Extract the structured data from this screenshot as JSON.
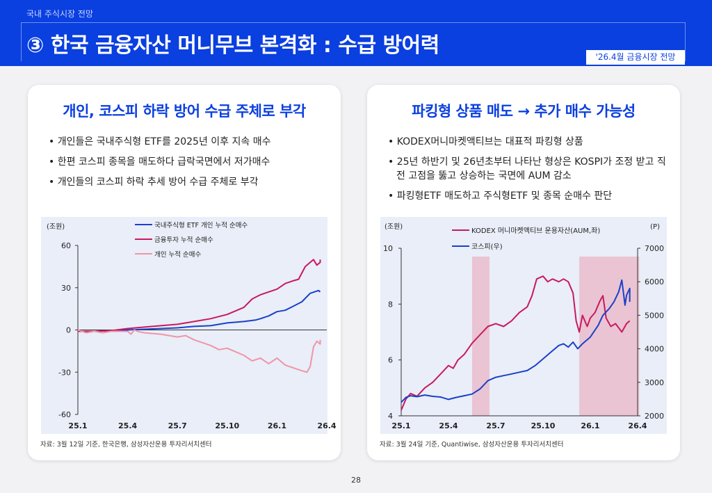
{
  "header": {
    "subtitle": "국내 주식시장 전망",
    "title": "③ 한국 금융자산 머니무브 본격화 : 수급 방어력",
    "badge": "'26.4월 금융시장 전망"
  },
  "left_panel": {
    "title": "개인, 코스피 하락 방어 수급 주체로 부각",
    "bullets": [
      "개인들은 국내주식형 ETF를 2025년 이후 지속 매수",
      "한편 코스피 종목을 매도하다 급락국면에서 저가매수",
      "개인들의 코스피 하락 추세 방어 수급 주체로 부각"
    ],
    "source": "자료: 3월 12일 기준, 한국은행, 삼성자산운용 투자리서치센터"
  },
  "right_panel": {
    "title": "파킹형 상품 매도 → 추가 매수 가능성",
    "bullets": [
      "KODEX머니마켓액티브는 대표적 파킹형 상품",
      "25년 하반기 및 26년초부터 나타난 형상은 KOSPI가 조정 받고 직전 고점을 뚫고 상승하는 국면에 AUM 감소",
      "파킹형ETF 매도하고 주식형ETF 및 종목 순매수 판단"
    ],
    "source": "자료: 3월 24일 기준, Quantiwise, 삼성자산운용 투자리서치센터"
  },
  "page_number": "28",
  "chart_data": [
    {
      "type": "line",
      "ylabel": "(조원)",
      "ylim": [
        -60,
        60
      ],
      "yticks": [
        60,
        30,
        0,
        -30,
        -60
      ],
      "xlim": [
        0,
        15
      ],
      "x_ticks": [
        {
          "x": 0,
          "label": "25.1"
        },
        {
          "x": 3,
          "label": "25.4"
        },
        {
          "x": 6,
          "label": "25.7"
        },
        {
          "x": 9,
          "label": "25.10"
        },
        {
          "x": 12,
          "label": "26.1"
        },
        {
          "x": 15,
          "label": "26.4"
        }
      ],
      "series": [
        {
          "name": "국내주식형 ETF 개인 누적 순매수",
          "color": "#1a40c8",
          "points": [
            [
              0,
              -1
            ],
            [
              1,
              -1
            ],
            [
              2,
              -0.5
            ],
            [
              3,
              0
            ],
            [
              4,
              0.5
            ],
            [
              5,
              1
            ],
            [
              6,
              1.5
            ],
            [
              7,
              2.5
            ],
            [
              8,
              3
            ],
            [
              9,
              5
            ],
            [
              10,
              6
            ],
            [
              10.7,
              7
            ],
            [
              11,
              8
            ],
            [
              11.5,
              10
            ],
            [
              12,
              13
            ],
            [
              12.5,
              14
            ],
            [
              13,
              17
            ],
            [
              13.5,
              20
            ],
            [
              14,
              26
            ],
            [
              14.5,
              28
            ],
            [
              14.6,
              27
            ]
          ]
        },
        {
          "name": "금융투자 누적 순매수",
          "color": "#c8195e",
          "points": [
            [
              0,
              -1
            ],
            [
              1,
              -1
            ],
            [
              2,
              -0.5
            ],
            [
              3,
              1
            ],
            [
              4,
              2
            ],
            [
              5,
              3
            ],
            [
              6,
              4
            ],
            [
              7,
              6
            ],
            [
              8,
              8
            ],
            [
              9,
              11
            ],
            [
              10,
              16
            ],
            [
              10.5,
              22
            ],
            [
              11,
              25
            ],
            [
              11.5,
              27
            ],
            [
              12,
              29
            ],
            [
              12.5,
              33
            ],
            [
              13,
              35
            ],
            [
              13.3,
              36
            ],
            [
              13.7,
              45
            ],
            [
              14,
              48
            ],
            [
              14.2,
              50
            ],
            [
              14.4,
              46
            ],
            [
              14.6,
              48
            ],
            [
              14.6,
              50
            ]
          ]
        },
        {
          "name": "개인 누적 순매수",
          "color": "#ef95a8",
          "points": [
            [
              0,
              0
            ],
            [
              0.5,
              -2
            ],
            [
              1,
              -1
            ],
            [
              1.5,
              -2
            ],
            [
              2,
              -1
            ],
            [
              2.5,
              -1
            ],
            [
              3,
              -1
            ],
            [
              3.2,
              -3
            ],
            [
              3.4,
              0
            ],
            [
              3.6,
              -1
            ],
            [
              4,
              -2
            ],
            [
              5,
              -3
            ],
            [
              5.5,
              -4
            ],
            [
              6,
              -5
            ],
            [
              6.5,
              -4
            ],
            [
              7,
              -7
            ],
            [
              8,
              -11
            ],
            [
              8.5,
              -14
            ],
            [
              9,
              -13
            ],
            [
              10,
              -18
            ],
            [
              10.5,
              -22
            ],
            [
              11,
              -20
            ],
            [
              11.5,
              -24
            ],
            [
              12,
              -20
            ],
            [
              12.5,
              -25
            ],
            [
              13,
              -27
            ],
            [
              13.5,
              -29
            ],
            [
              13.8,
              -30
            ],
            [
              14,
              -26
            ],
            [
              14.2,
              -12
            ],
            [
              14.4,
              -8
            ],
            [
              14.6,
              -10
            ],
            [
              14.6,
              -7
            ]
          ]
        }
      ]
    },
    {
      "type": "line",
      "ylabel": "(조원)",
      "y2label": "(P)",
      "ylim": [
        4,
        10
      ],
      "yticks": [
        10,
        8,
        6,
        4
      ],
      "y2lim": [
        2000,
        7000
      ],
      "y2ticks": [
        7000,
        6000,
        5000,
        4000,
        3000,
        2000
      ],
      "xlim": [
        0,
        15
      ],
      "x_ticks": [
        {
          "x": 0,
          "label": "25.1"
        },
        {
          "x": 3,
          "label": "25.4"
        },
        {
          "x": 6,
          "label": "25.7"
        },
        {
          "x": 9,
          "label": "25.10"
        },
        {
          "x": 12,
          "label": "26.1"
        },
        {
          "x": 15,
          "label": "26.4"
        }
      ],
      "shaded_ranges": [
        [
          4.5,
          5.6
        ],
        [
          11.3,
          15.1
        ]
      ],
      "series": [
        {
          "name": "KODEX 머니마켓액티브 운용자산(AUM,좌)",
          "axis": "left",
          "color": "#c8195e",
          "points": [
            [
              0,
              4.2
            ],
            [
              0.3,
              4.6
            ],
            [
              0.6,
              4.8
            ],
            [
              1,
              4.7
            ],
            [
              1.5,
              5.0
            ],
            [
              2,
              5.2
            ],
            [
              2.5,
              5.5
            ],
            [
              3,
              5.8
            ],
            [
              3.3,
              5.7
            ],
            [
              3.6,
              6.0
            ],
            [
              4,
              6.2
            ],
            [
              4.5,
              6.6
            ],
            [
              5,
              6.9
            ],
            [
              5.5,
              7.2
            ],
            [
              6,
              7.3
            ],
            [
              6.5,
              7.2
            ],
            [
              7,
              7.4
            ],
            [
              7.5,
              7.7
            ],
            [
              8,
              7.9
            ],
            [
              8.3,
              8.3
            ],
            [
              8.6,
              8.9
            ],
            [
              9,
              9.0
            ],
            [
              9.3,
              8.8
            ],
            [
              9.6,
              8.9
            ],
            [
              10,
              8.8
            ],
            [
              10.3,
              8.9
            ],
            [
              10.6,
              8.8
            ],
            [
              10.9,
              8.4
            ],
            [
              11.1,
              7.4
            ],
            [
              11.3,
              7.0
            ],
            [
              11.5,
              7.6
            ],
            [
              11.8,
              7.2
            ],
            [
              12,
              7.5
            ],
            [
              12.3,
              7.7
            ],
            [
              12.6,
              8.1
            ],
            [
              12.8,
              8.3
            ],
            [
              13,
              7.5
            ],
            [
              13.3,
              7.2
            ],
            [
              13.6,
              7.3
            ],
            [
              14,
              7.0
            ],
            [
              14.3,
              7.3
            ],
            [
              14.5,
              7.4
            ]
          ]
        },
        {
          "name": "코스피(우)",
          "axis": "right",
          "color": "#1a40c8",
          "points": [
            [
              0,
              2400
            ],
            [
              0.3,
              2550
            ],
            [
              0.6,
              2600
            ],
            [
              1,
              2570
            ],
            [
              1.5,
              2620
            ],
            [
              2,
              2580
            ],
            [
              2.5,
              2560
            ],
            [
              3,
              2490
            ],
            [
              3.5,
              2550
            ],
            [
              4,
              2600
            ],
            [
              4.5,
              2650
            ],
            [
              5,
              2800
            ],
            [
              5.5,
              3050
            ],
            [
              6,
              3150
            ],
            [
              6.5,
              3200
            ],
            [
              7,
              3250
            ],
            [
              7.5,
              3300
            ],
            [
              8,
              3350
            ],
            [
              8.5,
              3500
            ],
            [
              9,
              3700
            ],
            [
              9.5,
              3900
            ],
            [
              10,
              4100
            ],
            [
              10.3,
              4150
            ],
            [
              10.6,
              4050
            ],
            [
              10.9,
              4200
            ],
            [
              11.2,
              4000
            ],
            [
              11.5,
              4150
            ],
            [
              12,
              4350
            ],
            [
              12.5,
              4700
            ],
            [
              12.8,
              5000
            ],
            [
              13.2,
              5200
            ],
            [
              13.5,
              5400
            ],
            [
              13.8,
              5700
            ],
            [
              14,
              6050
            ],
            [
              14.2,
              5300
            ],
            [
              14.3,
              5600
            ],
            [
              14.5,
              5800
            ],
            [
              14.5,
              5400
            ]
          ]
        }
      ]
    }
  ]
}
